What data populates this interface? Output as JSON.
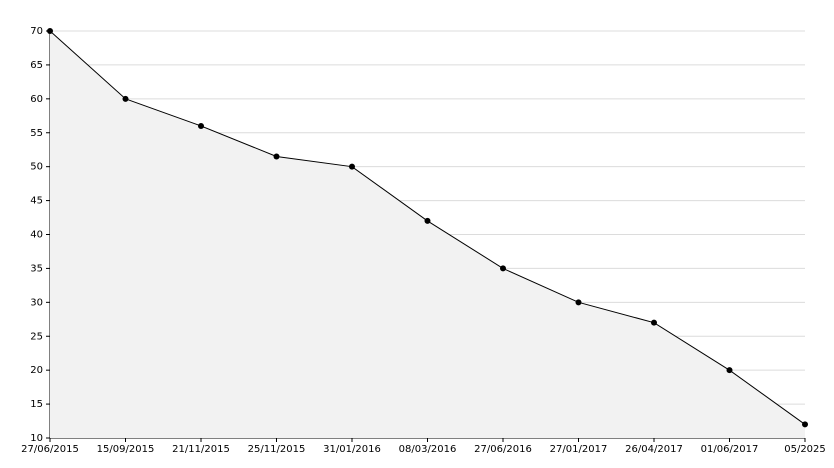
{
  "chart_data": {
    "type": "area",
    "categories": [
      "27/06/2015",
      "15/09/2015",
      "21/11/2015",
      "25/11/2015",
      "31/01/2016",
      "08/03/2016",
      "27/06/2016",
      "27/01/2017",
      "26/04/2017",
      "01/06/2017",
      "05/2025"
    ],
    "values": [
      70,
      60,
      56,
      51.5,
      50,
      42,
      35,
      30,
      27,
      20,
      12
    ],
    "color": "#000000",
    "fill": "#f2f2f2",
    "ylim": [
      10,
      70
    ],
    "yticks": [
      10,
      15,
      20,
      25,
      30,
      35,
      40,
      45,
      50,
      55,
      60,
      65,
      70
    ],
    "grid": true
  }
}
